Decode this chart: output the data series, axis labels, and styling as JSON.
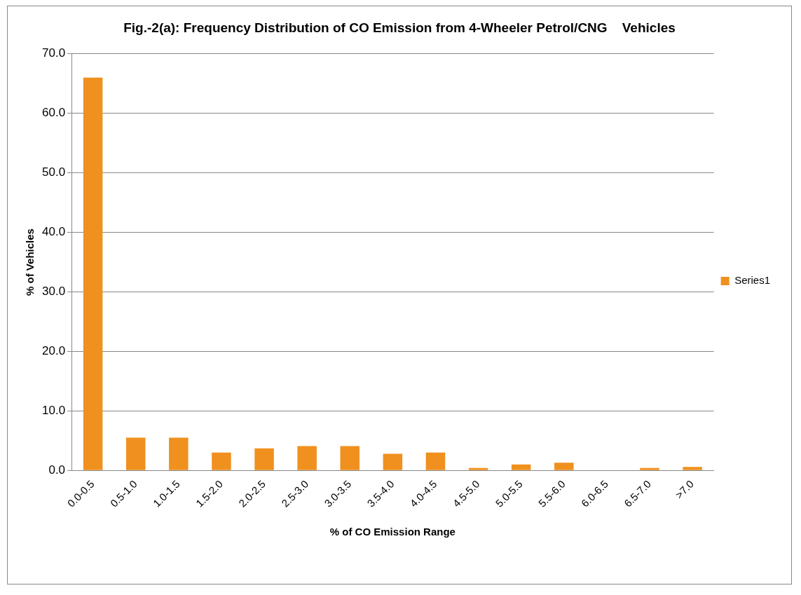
{
  "chart_data": {
    "type": "bar",
    "title": "Fig.-2(a): Frequency Distribution of CO Emission from 4-Wheeler Petrol/CNG    Vehicles",
    "xlabel": "% of CO Emission Range",
    "ylabel": "% of Vehicles",
    "categories": [
      "0.0-0.5",
      "0.5-1.0",
      "1.0-1.5",
      "1.5-2.0",
      "2.0-2.5",
      "2.5-3.0",
      "3.0-3.5",
      "3.5-4.0",
      "4.0-4.5",
      "4.5-5.0",
      "5.0-5.5",
      "5.5-6.0",
      "6.0-6.5",
      "6.5-7.0",
      ">7.0"
    ],
    "series": [
      {
        "name": "Series1",
        "color": "#f0901e",
        "values": [
          66.0,
          5.5,
          5.5,
          3.0,
          3.7,
          4.1,
          4.1,
          2.8,
          3.0,
          0.4,
          1.0,
          1.3,
          0,
          0.4,
          0.6
        ]
      }
    ],
    "ylim": [
      0,
      70
    ],
    "yticks": [
      {
        "value": 0,
        "label": "0.0"
      },
      {
        "value": 10,
        "label": "10.0"
      },
      {
        "value": 20,
        "label": "20.0"
      },
      {
        "value": 30,
        "label": "30.0"
      },
      {
        "value": 40,
        "label": "40.0"
      },
      {
        "value": 50,
        "label": "50.0"
      },
      {
        "value": 60,
        "label": "60.0"
      },
      {
        "value": 70,
        "label": "70.0"
      }
    ],
    "grid": "y",
    "legend": "right"
  }
}
